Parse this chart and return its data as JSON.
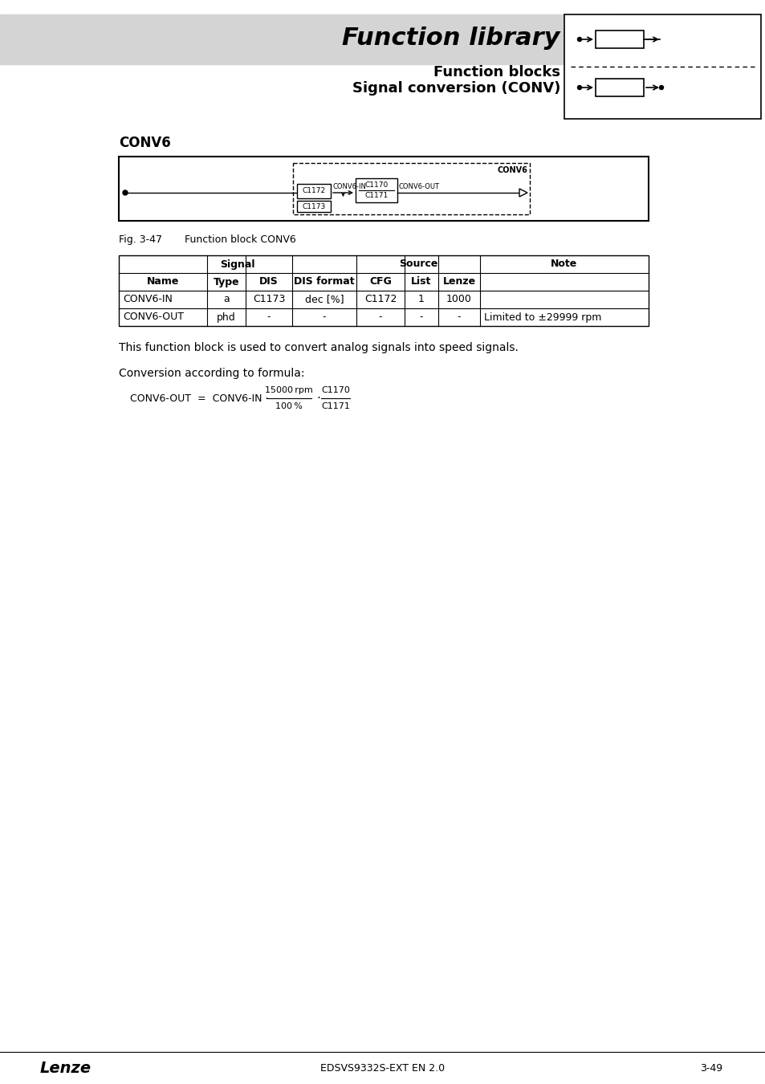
{
  "page_bg": "#ffffff",
  "header_bg": "#d4d4d4",
  "title_text": "Function library",
  "subtitle1": "Function blocks",
  "subtitle2": "Signal conversion (CONV)",
  "section_title": "CONV6",
  "fig_label": "Fig. 3-47",
  "fig_caption": "Function block CONV6",
  "table_row1": [
    "CONV6-IN",
    "a",
    "C1173",
    "dec [%]",
    "C1172",
    "1",
    "1000",
    ""
  ],
  "table_row2": [
    "CONV6-OUT",
    "phd",
    "-",
    "-",
    "-",
    "-",
    "-",
    "Limited to ±29999 rpm"
  ],
  "desc_text": "This function block is used to convert analog signals into speed signals.",
  "formula_prefix": "Conversion according to formula:",
  "footer_left": "Lenze",
  "footer_center": "EDSVS9332S-EXT EN 2.0",
  "footer_right": "3-49"
}
